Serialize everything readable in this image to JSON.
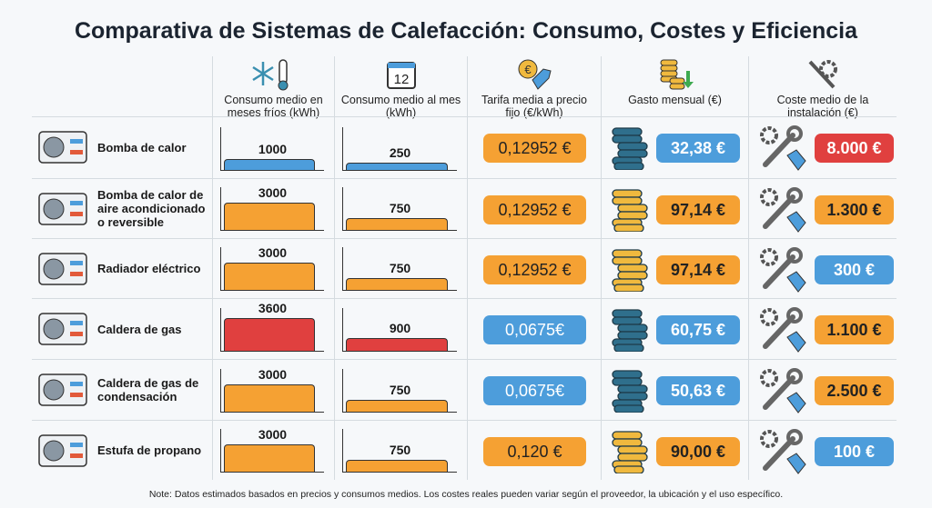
{
  "title": "Comparativa de Sistemas de Calefacción: Consumo, Costes y Eficiencia",
  "headers": [
    {
      "label": "Consumo medio en meses fríos (kWh)",
      "icon": "snowflake-thermometer-icon"
    },
    {
      "label": "Consumo medio al mes (kWh)",
      "icon": "calendar-icon",
      "icon_text": "12"
    },
    {
      "label": "Tarifa media a precio fijo (€/kWh)",
      "icon": "euro-tag-icon"
    },
    {
      "label": "Gasto mensual (€)",
      "icon": "coins-down-icon"
    },
    {
      "label": "Coste medio de la instalación (€)",
      "icon": "tools-icon"
    }
  ],
  "colors": {
    "orange": "#f5a133",
    "blue": "#4d9ddb",
    "red": "#e0403f",
    "blue_coins": "#2f6f8c",
    "gold_coins": "#f0b93e"
  },
  "chart_data": {
    "type": "table",
    "title": "Comparativa de Sistemas de Calefacción: Consumo, Costes y Eficiencia",
    "columns": [
      "Consumo medio en meses fríos (kWh)",
      "Consumo medio al mes (kWh)",
      "Tarifa media a precio fijo (€/kWh)",
      "Gasto mensual (€)",
      "Coste medio de la instalación (€)"
    ],
    "rows": [
      {
        "name": "Bomba de calor",
        "icon": "heat-pump-icon",
        "cold": 1000,
        "monthly": 250,
        "bar_color": "blue",
        "tariff": "0,12952 €",
        "tariff_color": "orange",
        "spend": "32,38 €",
        "spend_color": "blue",
        "coins": "blue",
        "install": "8.000 €",
        "install_color": "red"
      },
      {
        "name": "Bomba de calor de aire acondicionado o reversible",
        "icon": "air-conditioner-icon",
        "cold": 3000,
        "monthly": 750,
        "bar_color": "orange",
        "tariff": "0,12952 €",
        "tariff_color": "orange",
        "spend": "97,14 €",
        "spend_color": "orange",
        "coins": "gold",
        "install": "1.300 €",
        "install_color": "orange"
      },
      {
        "name": "Radiador eléctrico",
        "icon": "radiator-icon",
        "cold": 3000,
        "monthly": 750,
        "bar_color": "orange",
        "tariff": "0,12952 €",
        "tariff_color": "orange",
        "spend": "97,14 €",
        "spend_color": "orange",
        "coins": "gold",
        "install": "300 €",
        "install_color": "blue"
      },
      {
        "name": "Caldera de gas",
        "icon": "gas-boiler-icon",
        "cold": 3600,
        "monthly": 900,
        "bar_color": "red",
        "tariff": "0,0675€",
        "tariff_color": "blue",
        "spend": "60,75 €",
        "spend_color": "blue",
        "coins": "blue",
        "install": "1.100 €",
        "install_color": "orange"
      },
      {
        "name": "Caldera de gas de condensación",
        "icon": "condensing-boiler-icon",
        "cold": 3000,
        "monthly": 750,
        "bar_color": "orange",
        "tariff": "0,0675€",
        "tariff_color": "blue",
        "spend": "50,63 €",
        "spend_color": "blue",
        "coins": "blue",
        "install": "2.500 €",
        "install_color": "orange"
      },
      {
        "name": "Estufa de propano",
        "icon": "propane-heater-icon",
        "cold": 3000,
        "monthly": 750,
        "bar_color": "orange",
        "tariff": "0,120 €",
        "tariff_color": "orange",
        "spend": "90,00 €",
        "spend_color": "orange",
        "coins": "gold",
        "install": "100 €",
        "install_color": "blue"
      }
    ]
  },
  "note": "Note: Datos estimados basados en precios y consumos medios. Los costes reales pueden variar según el proveedor, la ubicación y el uso específico."
}
